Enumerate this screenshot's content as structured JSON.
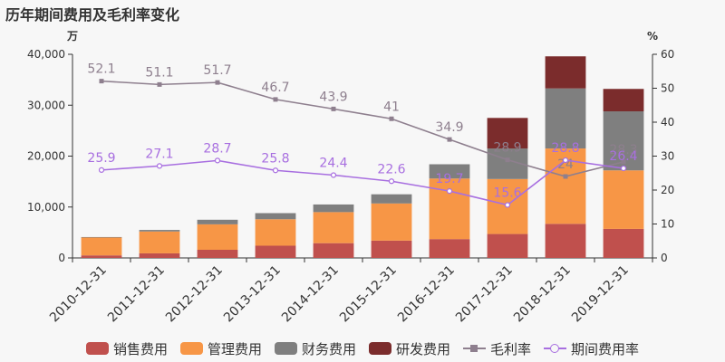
{
  "title": "历年期间费用及毛利率变化",
  "chart_data": {
    "type": "bar",
    "stacked": true,
    "categories": [
      "2010-12-31",
      "2011-12-31",
      "2012-12-31",
      "2013-12-31",
      "2014-12-31",
      "2015-12-31",
      "2016-12-31",
      "2017-12-31",
      "2018-12-31",
      "2019-12-31"
    ],
    "left_axis": {
      "unit": "万",
      "ylim": [
        0,
        40000
      ],
      "ticks": [
        "0",
        "10,000",
        "20,000",
        "30,000",
        "40,000"
      ]
    },
    "right_axis": {
      "unit": "%",
      "ylim": [
        0,
        60
      ],
      "ticks": [
        "0",
        "10",
        "20",
        "30",
        "40",
        "50",
        "60"
      ]
    },
    "series": [
      {
        "name": "销售费用",
        "type": "bar",
        "color": "#c0504d",
        "values": [
          500,
          900,
          1600,
          2400,
          2900,
          3400,
          3700,
          4700,
          6700,
          5700
        ]
      },
      {
        "name": "管理费用",
        "type": "bar",
        "color": "#f79646",
        "values": [
          3500,
          4300,
          5000,
          5200,
          6100,
          7300,
          11900,
          10800,
          14800,
          11500
        ]
      },
      {
        "name": "财务费用",
        "type": "bar",
        "color": "#7f7f7f",
        "values": [
          100,
          300,
          900,
          1200,
          1500,
          1800,
          2800,
          6000,
          11800,
          11600
        ]
      },
      {
        "name": "研发费用",
        "type": "bar",
        "color": "#7b2c2c",
        "values": [
          0,
          0,
          0,
          0,
          0,
          0,
          0,
          6000,
          6300,
          4400
        ]
      },
      {
        "name": "毛利率",
        "type": "line",
        "axis": "right",
        "color": "#8e7f8e",
        "marker": "square",
        "values": [
          52.1,
          51.1,
          51.7,
          46.7,
          43.9,
          41,
          34.9,
          28.9,
          24,
          28.3
        ],
        "labels": [
          "52.1",
          "51.1",
          "51.7",
          "46.7",
          "43.9",
          "41",
          "34.9",
          "28.9",
          "24",
          "28.3"
        ]
      },
      {
        "name": "期间费用率",
        "type": "line",
        "axis": "right",
        "color": "#a86fe0",
        "marker": "circle",
        "values": [
          25.9,
          27.1,
          28.7,
          25.8,
          24.4,
          22.6,
          19.7,
          15.6,
          28.8,
          26.4
        ],
        "labels": [
          "25.9",
          "27.1",
          "28.7",
          "25.8",
          "24.4",
          "22.6",
          "19.7",
          "15.6",
          "28.8",
          "26.4"
        ]
      }
    ]
  }
}
